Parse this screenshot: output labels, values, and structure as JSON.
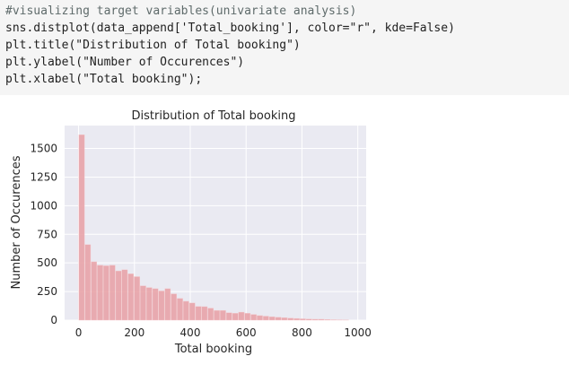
{
  "code_cell": {
    "lines": [
      "#visualizing target variables(univariate analysis)",
      "sns.distplot(data_append['Total_booking'], color=\"r\", kde=False)",
      "plt.title(\"Distribution of Total booking\")",
      "plt.ylabel(\"Number of Occurences\")",
      "plt.xlabel(\"Total booking\");"
    ]
  },
  "chart_data": {
    "type": "bar",
    "title": "Distribution of Total booking",
    "xlabel": "Total booking",
    "ylabel": "Number of Occurences",
    "xlim": [
      -50,
      1030
    ],
    "ylim": [
      0,
      1700
    ],
    "x_ticks": [
      0,
      200,
      400,
      600,
      800,
      1000
    ],
    "y_ticks": [
      0,
      250,
      500,
      750,
      1000,
      1250,
      1500
    ],
    "grid": true,
    "bar_color": "#e8a3a8",
    "background_color": "#eaeaf2",
    "bin_width": 22,
    "bin_starts": [
      1,
      23,
      45,
      67,
      89,
      111,
      133,
      155,
      177,
      199,
      221,
      243,
      265,
      287,
      309,
      331,
      353,
      375,
      397,
      419,
      441,
      463,
      485,
      507,
      529,
      551,
      573,
      595,
      617,
      639,
      661,
      683,
      705,
      727,
      749,
      771,
      793,
      815,
      837,
      859,
      881,
      903,
      925,
      947
    ],
    "values": [
      1620,
      660,
      510,
      480,
      475,
      480,
      430,
      440,
      405,
      380,
      300,
      285,
      275,
      255,
      275,
      230,
      190,
      165,
      150,
      120,
      118,
      105,
      85,
      85,
      65,
      60,
      70,
      60,
      50,
      40,
      35,
      30,
      25,
      22,
      18,
      15,
      12,
      10,
      8,
      8,
      6,
      4,
      3,
      2
    ]
  }
}
